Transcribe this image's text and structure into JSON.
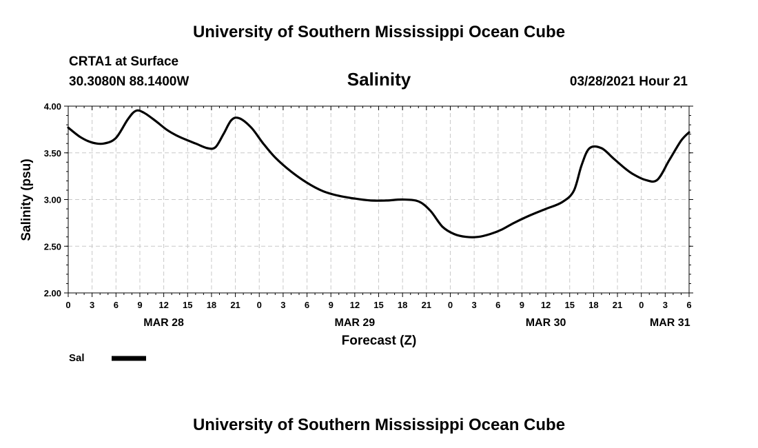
{
  "header": {
    "title_top": "University of Southern Mississippi Ocean Cube",
    "station": "CRTA1 at Surface",
    "coords": "30.3080N  88.1400W",
    "timestamp": "03/28/2021 Hour 21",
    "title_bottom": "University of Southern Mississippi Ocean Cube"
  },
  "chart_data": {
    "type": "line",
    "title": "Salinity",
    "xlabel": "Forecast (Z)",
    "ylabel": "Salinity (psu)",
    "ylim": [
      2.0,
      4.0
    ],
    "yticks": [
      2.0,
      2.5,
      3.0,
      3.5,
      4.0
    ],
    "ytick_labels": [
      "2.00",
      "2.50",
      "3.00",
      "3.50",
      "4.00"
    ],
    "xlim": [
      0,
      78
    ],
    "x_units": "hours since 0Z MAR 28",
    "xticks": [
      0,
      3,
      6,
      9,
      12,
      15,
      18,
      21,
      24,
      27,
      30,
      33,
      36,
      39,
      42,
      45,
      48,
      51,
      54,
      57,
      60,
      63,
      66,
      69,
      72,
      75,
      78
    ],
    "xtick_labels": [
      "0",
      "3",
      "6",
      "9",
      "12",
      "15",
      "18",
      "21",
      "0",
      "3",
      "6",
      "9",
      "12",
      "15",
      "18",
      "21",
      "0",
      "3",
      "6",
      "9",
      "12",
      "15",
      "18",
      "21",
      "0",
      "3",
      "6"
    ],
    "date_labels": [
      {
        "label": "MAR 28",
        "x": 12
      },
      {
        "label": "MAR 29",
        "x": 36
      },
      {
        "label": "MAR 30",
        "x": 60
      },
      {
        "label": "MAR 31",
        "x": 75.6
      }
    ],
    "grid": true,
    "legend_position": "bottom-left",
    "series": [
      {
        "name": "Sal",
        "x": [
          0,
          1.5,
          3,
          4.5,
          6,
          7.5,
          8.5,
          9.5,
          11,
          12.5,
          14,
          16,
          17.5,
          18.5,
          19.5,
          20.5,
          21.5,
          23,
          24.5,
          26,
          28,
          30,
          32,
          34,
          36,
          38,
          40,
          42,
          44,
          45.5,
          47,
          48.5,
          50,
          51.5,
          53,
          54.5,
          56,
          58,
          60,
          62,
          63.5,
          64.5,
          65.5,
          67,
          68.5,
          70,
          71,
          72.5,
          74,
          75.5,
          77,
          78
        ],
        "values": [
          3.77,
          3.67,
          3.61,
          3.6,
          3.66,
          3.86,
          3.95,
          3.93,
          3.84,
          3.74,
          3.67,
          3.6,
          3.55,
          3.56,
          3.7,
          3.85,
          3.87,
          3.77,
          3.6,
          3.45,
          3.3,
          3.18,
          3.09,
          3.04,
          3.01,
          2.99,
          2.99,
          3.0,
          2.98,
          2.88,
          2.71,
          2.63,
          2.6,
          2.6,
          2.63,
          2.68,
          2.75,
          2.83,
          2.9,
          2.97,
          3.09,
          3.37,
          3.55,
          3.55,
          3.44,
          3.33,
          3.27,
          3.21,
          3.21,
          3.42,
          3.63,
          3.72
        ]
      }
    ]
  }
}
